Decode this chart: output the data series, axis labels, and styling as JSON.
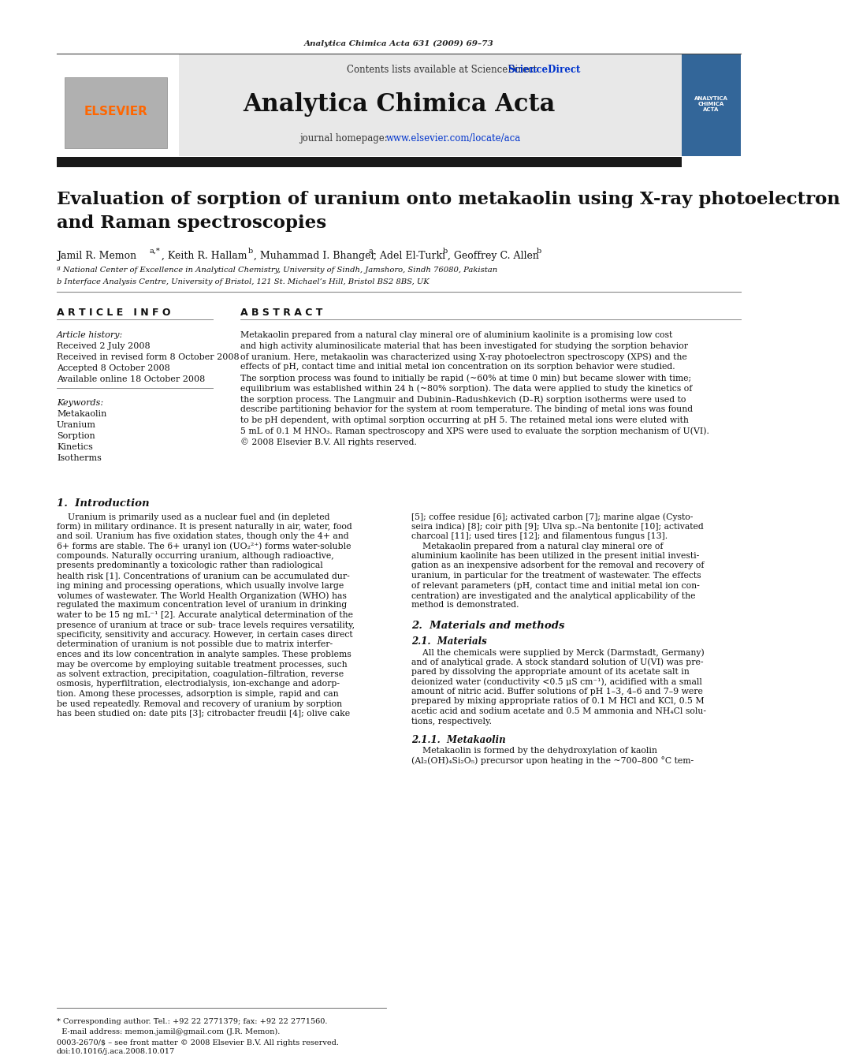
{
  "journal_name": "Analytica Chimica Acta",
  "journal_ref": "Analytica Chimica Acta 631 (2009) 69–73",
  "contents_line": "Contents lists available at ScienceDirect",
  "homepage_line": "journal homepage: www.elsevier.com/locate/aca",
  "sciencedirect_color": "#0033cc",
  "homepage_color": "#0033cc",
  "elsevier_color": "#ff6600",
  "header_bg": "#e8e8e8",
  "dark_bar_color": "#1a1a1a",
  "article_title_line1": "Evaluation of sorption of uranium onto metakaolin using X-ray photoelectron",
  "article_title_line2": "and Raman spectroscopies",
  "affil_a": "ª National Center of Excellence in Analytical Chemistry, University of Sindh, Jamshoro, Sindh 76080, Pakistan",
  "affil_b": "b Interface Analysis Centre, University of Bristol, 121 St. Michael’s Hill, Bristol BS2 8BS, UK",
  "article_info_title": "A R T I C L E   I N F O",
  "abstract_title": "A B S T R A C T",
  "article_history_title": "Article history:",
  "received": "Received 2 July 2008",
  "revised": "Received in revised form 8 October 2008",
  "accepted": "Accepted 8 October 2008",
  "online": "Available online 18 October 2008",
  "keywords_title": "Keywords:",
  "keywords": [
    "Metakaolin",
    "Uranium",
    "Sorption",
    "Kinetics",
    "Isotherms"
  ],
  "section1_title": "1.  Introduction",
  "section2_title": "2.  Materials and methods",
  "section21_title": "2.1.  Materials",
  "section211_title": "2.1.1.  Metakaolin",
  "footer_note_line1": "* Corresponding author. Tel.: +92 22 2771379; fax: +92 22 2771560.",
  "footer_note_line2": "  E-mail address: memon.jamil@gmail.com (J.R. Memon).",
  "footer_bottom_line1": "0003-2670/$ – see front matter © 2008 Elsevier B.V. All rights reserved.",
  "footer_bottom_line2": "doi:10.1016/j.aca.2008.10.017",
  "bg_color": "#ffffff",
  "text_color": "#000000"
}
